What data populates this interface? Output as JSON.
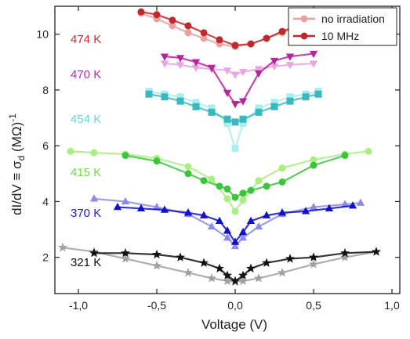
{
  "chart_data": {
    "type": "scatter",
    "title": "",
    "xlabel": "Voltage (V)",
    "ylabel": "dI/dV ≡ σ",
    "ylabel_sub": "d",
    "ylabel_unit": " (MΩ)",
    "ylabel_sup": "-1",
    "xlim": [
      -1.15,
      1.05
    ],
    "ylim": [
      0.7,
      11.0
    ],
    "xticks": [
      -1.0,
      -0.5,
      0.0,
      0.5,
      1.0
    ],
    "xtick_labels": [
      "-1,0",
      "-0,5",
      "0,0",
      "0,5",
      "1,0"
    ],
    "yticks": [
      2,
      4,
      6,
      8,
      10
    ],
    "ytick_labels": [
      "2",
      "4",
      "6",
      "8",
      "10"
    ],
    "legend": {
      "position": "top-right",
      "entries": [
        {
          "label": "no irradiation",
          "marker": "circle",
          "color": "#e8a0a0"
        },
        {
          "label": "10 MHz",
          "marker": "circle",
          "color": "#c0282a"
        }
      ]
    },
    "annotations": [
      {
        "text": "474 K",
        "color": "#d42a2a"
      },
      {
        "text": "470 K",
        "color": "#c027b4"
      },
      {
        "text": "454 K",
        "color": "#62d8d8"
      },
      {
        "text": "415 K",
        "color": "#6bdd3a"
      },
      {
        "text": "370 K",
        "color": "#1a1ae0"
      },
      {
        "text": "321 K",
        "color": "#111111"
      }
    ],
    "series": [
      {
        "name": "474 K no irradiation",
        "marker": "circle",
        "color": "#e8a0a0",
        "x": [
          -0.6,
          -0.5,
          -0.4,
          -0.3,
          -0.2,
          -0.1,
          0.0,
          0.1,
          0.2,
          0.3,
          0.4,
          0.5,
          0.6
        ],
        "y": [
          10.75,
          10.55,
          10.3,
          10.05,
          9.85,
          9.65,
          9.55,
          9.65,
          9.85,
          10.05,
          10.3,
          10.5,
          10.6
        ]
      },
      {
        "name": "474 K 10 MHz",
        "marker": "circle",
        "color": "#c0282a",
        "x": [
          -0.6,
          -0.5,
          -0.4,
          -0.3,
          -0.2,
          -0.1,
          0.0,
          0.1,
          0.2,
          0.3,
          0.4,
          0.5,
          0.6
        ],
        "y": [
          10.8,
          10.7,
          10.5,
          10.3,
          10.05,
          9.8,
          9.6,
          9.65,
          9.85,
          10.1,
          10.3,
          10.45,
          10.55
        ]
      },
      {
        "name": "470 K no irradiation",
        "marker": "triangle-down",
        "color": "#e8a5e0",
        "x": [
          -0.45,
          -0.35,
          -0.25,
          -0.15,
          -0.05,
          0.0,
          0.05,
          0.15,
          0.25,
          0.35,
          0.5
        ],
        "y": [
          8.95,
          8.9,
          8.8,
          8.75,
          8.7,
          8.55,
          8.65,
          8.75,
          8.85,
          8.9,
          8.95
        ]
      },
      {
        "name": "470 K 10 MHz",
        "marker": "triangle-down",
        "color": "#b8239e",
        "x": [
          -0.45,
          -0.35,
          -0.25,
          -0.15,
          -0.05,
          0.0,
          0.05,
          0.15,
          0.25,
          0.35,
          0.5
        ],
        "y": [
          9.2,
          9.15,
          9.0,
          8.8,
          7.9,
          7.5,
          7.6,
          8.6,
          9.05,
          9.2,
          9.3
        ]
      },
      {
        "name": "454 K no irradiation",
        "marker": "square",
        "color": "#a8eeee",
        "x": [
          -0.55,
          -0.45,
          -0.35,
          -0.25,
          -0.15,
          -0.05,
          0.0,
          0.05,
          0.15,
          0.25,
          0.35,
          0.45,
          0.53
        ],
        "y": [
          7.95,
          7.85,
          7.75,
          7.55,
          7.35,
          6.8,
          5.9,
          6.8,
          7.35,
          7.55,
          7.75,
          7.85,
          7.95
        ]
      },
      {
        "name": "454 K 10 MHz",
        "marker": "square",
        "color": "#3ab8c0",
        "x": [
          -0.55,
          -0.45,
          -0.35,
          -0.25,
          -0.15,
          -0.05,
          0.0,
          0.05,
          0.15,
          0.25,
          0.35,
          0.45,
          0.53
        ],
        "y": [
          7.85,
          7.75,
          7.6,
          7.4,
          7.2,
          6.95,
          6.85,
          6.95,
          7.2,
          7.4,
          7.6,
          7.75,
          7.85
        ]
      },
      {
        "name": "415 K no irradiation",
        "marker": "circle",
        "color": "#a8ee80",
        "x": [
          -1.05,
          -0.9,
          -0.7,
          -0.5,
          -0.3,
          -0.15,
          -0.05,
          0.0,
          0.05,
          0.15,
          0.3,
          0.5,
          0.7,
          0.85
        ],
        "y": [
          5.8,
          5.75,
          5.7,
          5.55,
          5.25,
          4.8,
          4.1,
          3.65,
          4.05,
          4.75,
          5.2,
          5.5,
          5.7,
          5.8
        ]
      },
      {
        "name": "415 K 10 MHz",
        "marker": "circle",
        "color": "#3cc43c",
        "x": [
          -0.7,
          -0.5,
          -0.3,
          -0.2,
          -0.1,
          -0.05,
          0.0,
          0.05,
          0.1,
          0.2,
          0.3,
          0.5,
          0.7
        ],
        "y": [
          5.65,
          5.45,
          5.0,
          4.75,
          4.55,
          4.45,
          4.15,
          4.3,
          4.4,
          4.55,
          4.7,
          5.3,
          5.65
        ]
      },
      {
        "name": "370 K no irradiation",
        "marker": "triangle-up",
        "color": "#8c8ce8",
        "x": [
          -0.9,
          -0.7,
          -0.5,
          -0.3,
          -0.15,
          -0.05,
          0.0,
          0.05,
          0.15,
          0.3,
          0.5,
          0.7,
          0.8
        ],
        "y": [
          4.1,
          4.0,
          3.8,
          3.55,
          3.1,
          2.7,
          2.4,
          2.7,
          3.1,
          3.55,
          3.8,
          3.9,
          3.95
        ]
      },
      {
        "name": "370 K 10 MHz",
        "marker": "triangle-up",
        "color": "#1111c8",
        "x": [
          -0.75,
          -0.6,
          -0.45,
          -0.3,
          -0.2,
          -0.1,
          -0.05,
          0.0,
          0.05,
          0.1,
          0.2,
          0.3,
          0.45,
          0.6,
          0.75
        ],
        "y": [
          3.8,
          3.75,
          3.7,
          3.6,
          3.5,
          3.3,
          2.95,
          2.55,
          2.9,
          3.3,
          3.5,
          3.6,
          3.65,
          3.75,
          3.85
        ]
      },
      {
        "name": "321 K no irradiation",
        "marker": "star",
        "color": "#a0a0a0",
        "x": [
          -1.1,
          -0.9,
          -0.7,
          -0.5,
          -0.3,
          -0.15,
          -0.05,
          0.0,
          0.05,
          0.15,
          0.3,
          0.5,
          0.7,
          0.9
        ],
        "y": [
          2.35,
          2.2,
          1.95,
          1.7,
          1.45,
          1.25,
          1.15,
          1.12,
          1.15,
          1.25,
          1.45,
          1.75,
          2.0,
          2.2
        ]
      },
      {
        "name": "321 K 10 MHz",
        "marker": "star",
        "color": "#111111",
        "x": [
          -0.9,
          -0.7,
          -0.5,
          -0.35,
          -0.2,
          -0.1,
          -0.05,
          0.0,
          0.05,
          0.1,
          0.2,
          0.35,
          0.5,
          0.7,
          0.9
        ],
        "y": [
          2.15,
          2.15,
          2.1,
          2.0,
          1.8,
          1.6,
          1.35,
          1.15,
          1.35,
          1.6,
          1.8,
          1.95,
          2.0,
          2.15,
          2.2
        ]
      }
    ]
  }
}
